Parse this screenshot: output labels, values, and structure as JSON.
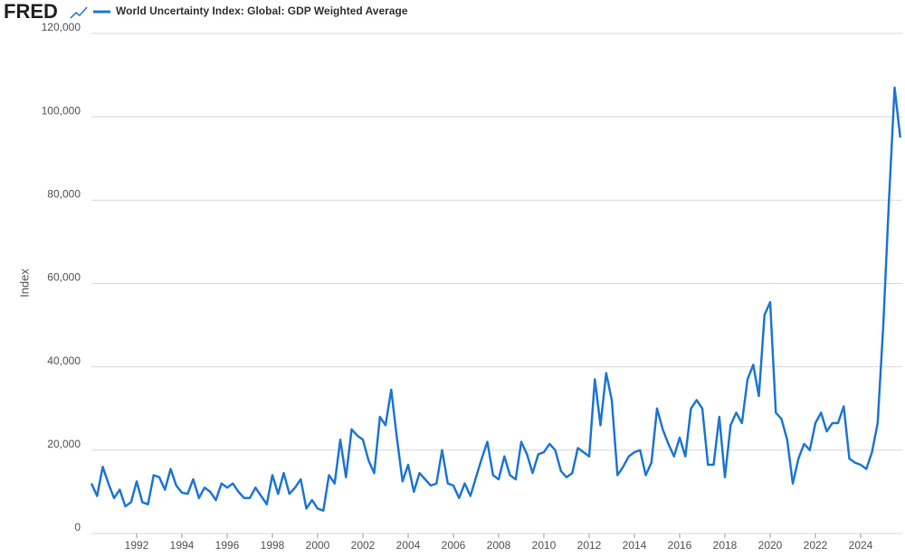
{
  "chart_data": {
    "type": "line",
    "logo": "FRED",
    "legend": "top-left",
    "y_label": "Index",
    "grid": true,
    "xlim": [
      1990,
      2025.84
    ],
    "ylim": [
      0,
      120000
    ],
    "xticks": [
      1992,
      1994,
      1996,
      1998,
      2000,
      2002,
      2004,
      2006,
      2008,
      2010,
      2012,
      2014,
      2016,
      2018,
      2020,
      2022,
      2024
    ],
    "yticks": [
      0,
      {
        "value": 20000,
        "label": "20,000"
      },
      {
        "value": 40000,
        "label": "40,000"
      },
      {
        "value": 60000,
        "label": "60,000"
      },
      {
        "value": 80000,
        "label": "80,000"
      },
      {
        "value": 100000,
        "label": "100,000"
      },
      {
        "value": 120000,
        "label": "120,000"
      }
    ],
    "x": [
      1990,
      1990.25,
      1990.5,
      1990.75,
      1991,
      1991.25,
      1991.5,
      1991.75,
      1992,
      1992.25,
      1992.5,
      1992.75,
      1993,
      1993.25,
      1993.5,
      1993.75,
      1994,
      1994.25,
      1994.5,
      1994.75,
      1995,
      1995.25,
      1995.5,
      1995.75,
      1996,
      1996.25,
      1996.5,
      1996.75,
      1997,
      1997.25,
      1997.5,
      1997.75,
      1998,
      1998.25,
      1998.5,
      1998.75,
      1999,
      1999.25,
      1999.5,
      1999.75,
      2000,
      2000.25,
      2000.5,
      2000.75,
      2001,
      2001.25,
      2001.5,
      2001.75,
      2002,
      2002.25,
      2002.5,
      2002.75,
      2003,
      2003.25,
      2003.5,
      2003.75,
      2004,
      2004.25,
      2004.5,
      2004.75,
      2005,
      2005.25,
      2005.5,
      2005.75,
      2006,
      2006.25,
      2006.5,
      2006.75,
      2007,
      2007.25,
      2007.5,
      2007.75,
      2008,
      2008.25,
      2008.5,
      2008.75,
      2009,
      2009.25,
      2009.5,
      2009.75,
      2010,
      2010.25,
      2010.5,
      2010.75,
      2011,
      2011.25,
      2011.5,
      2011.75,
      2012,
      2012.25,
      2012.5,
      2012.75,
      2013,
      2013.25,
      2013.5,
      2013.75,
      2014,
      2014.25,
      2014.5,
      2014.75,
      2015,
      2015.25,
      2015.5,
      2015.75,
      2016,
      2016.25,
      2016.5,
      2016.75,
      2017,
      2017.25,
      2017.5,
      2017.75,
      2018,
      2018.25,
      2018.5,
      2018.75,
      2019,
      2019.25,
      2019.5,
      2019.75,
      2020,
      2020.25,
      2020.5,
      2020.75,
      2021,
      2021.25,
      2021.5,
      2021.75,
      2022,
      2022.25,
      2022.5,
      2022.75,
      2023,
      2023.25,
      2023.5,
      2023.75,
      2024,
      2024.25,
      2024.5,
      2024.75,
      2025,
      2025.25,
      2025.5,
      2025.75
    ],
    "series": [
      {
        "name": "World Uncertainty Index: Global: GDP Weighted Average",
        "color": "#1f77d4",
        "values": [
          12000,
          9000,
          16000,
          12000,
          8500,
          10500,
          6500,
          7500,
          12500,
          7500,
          7000,
          14000,
          13500,
          10500,
          15500,
          11500,
          9800,
          9500,
          13000,
          8500,
          11000,
          10000,
          8000,
          12000,
          11000,
          12000,
          10000,
          8500,
          8500,
          11000,
          9000,
          7000,
          14000,
          9500,
          14500,
          9500,
          11000,
          13000,
          6000,
          8000,
          6000,
          5500,
          14000,
          12000,
          22500,
          13500,
          25000,
          23500,
          22500,
          17500,
          14500,
          28000,
          26000,
          34500,
          23000,
          12500,
          16500,
          10000,
          14500,
          13000,
          11500,
          12000,
          20000,
          12000,
          11500,
          8500,
          12000,
          9000,
          13500,
          18000,
          22000,
          14000,
          13000,
          18500,
          14000,
          13000,
          22000,
          19000,
          14500,
          19000,
          19500,
          21500,
          20000,
          15000,
          13500,
          14500,
          20500,
          19500,
          18500,
          37000,
          26000,
          38500,
          32000,
          14000,
          16000,
          18500,
          19500,
          20000,
          14000,
          17000,
          30000,
          25000,
          21500,
          18500,
          23000,
          18500,
          30000,
          32000,
          30000,
          16500,
          16500,
          28000,
          13500,
          26000,
          29000,
          26500,
          37000,
          40500,
          33000,
          52500,
          55500,
          29000,
          27500,
          22500,
          12000,
          18000,
          21500,
          20000,
          26500,
          29000,
          24500,
          26500,
          26500,
          30500,
          18000,
          17000,
          16500,
          15500,
          19500,
          26500,
          50000,
          80000,
          107000,
          95000
        ]
      }
    ]
  }
}
